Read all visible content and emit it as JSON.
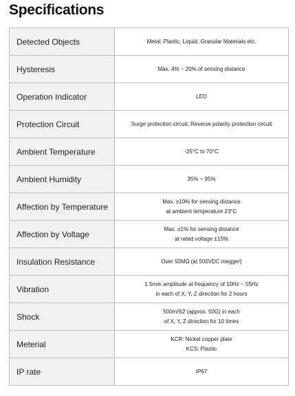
{
  "header": {
    "title": "Specifications"
  },
  "table": {
    "rows": [
      {
        "label": "Detected Objects",
        "value": [
          "Metal, Plastic, Liquid, Granular Materials etc."
        ]
      },
      {
        "label": "Hysteresis",
        "value": [
          "Max. 4% ~ 20% of sensing distance"
        ]
      },
      {
        "label": "Operation Indicator",
        "value": [
          "LED"
        ]
      },
      {
        "label": "Protection Circuit",
        "value": [
          "Surge protection circuit, Reverse polarity protection circuit"
        ]
      },
      {
        "label": "Ambient Temperature",
        "value": [
          "-25°C to 70°C"
        ]
      },
      {
        "label": "Ambient Humidity",
        "value": [
          "35% ~ 95%"
        ]
      },
      {
        "label": "Affection by Temperature",
        "value": [
          "Max. ±10% for sensing distance",
          "at ambient temperature 23°C"
        ]
      },
      {
        "label": "Affection by Voltage",
        "value": [
          "Max. ±1% for sensing distance",
          "at rated voltage ±15%"
        ]
      },
      {
        "label": "Insulation Resistance",
        "value": [
          "Over 50MΩ (at 500VDC megger)"
        ]
      },
      {
        "label": "Vibration",
        "value": [
          "1.5mm amplitude at frequency of 10Hz ~ 55Hz",
          "in each of X, Y, Z direction for 2 hours"
        ]
      },
      {
        "label": "Shock",
        "value": [
          "500m/S2 (approx. 50G) in each",
          "of X, Y, Z direction for 10 times"
        ]
      },
      {
        "label": "Meterial",
        "value": [
          "KCR: Nickel copper plate",
          "KCS: Plastic"
        ]
      },
      {
        "label": "IP rate",
        "value": [
          "IP67"
        ]
      }
    ]
  }
}
